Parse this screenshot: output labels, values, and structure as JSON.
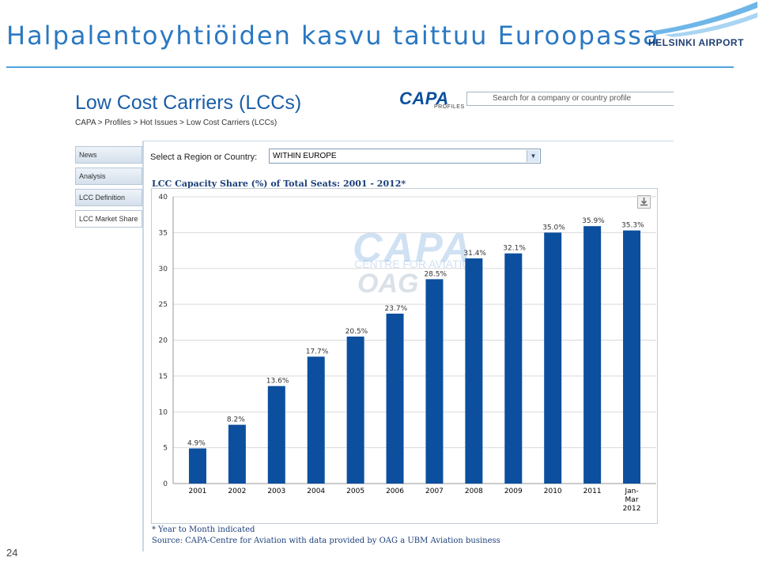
{
  "slide": {
    "title": "Halpalentoyhtiöiden kasvu taittuu Euroopassa",
    "page_number": "24"
  },
  "logo": {
    "text": "HELSINKI AIRPORT",
    "icon": "airplane-wing-icon"
  },
  "capa_page": {
    "heading": "Low Cost Carriers (LCCs)",
    "breadcrumb": "CAPA > Profiles > Hot Issues > Low Cost Carriers (LCCs)",
    "brand": "CAPA",
    "brand_sub": "PROFILES",
    "search_placeholder": "Search for a company or country profile"
  },
  "sidebar": {
    "items": [
      {
        "label": "News"
      },
      {
        "label": "Analysis"
      },
      {
        "label": "LCC Definition"
      },
      {
        "label": "LCC Market Share"
      }
    ]
  },
  "filter": {
    "label": "Select a Region or Country:",
    "selected": "WITHIN EUROPE"
  },
  "watermark": {
    "brand": "CAPA",
    "sub": "CENTRE FOR AVIATION",
    "partner": "OAG"
  },
  "chart_data": {
    "type": "bar",
    "title": "LCC Capacity Share (%) of Total Seats: 2001 - 2012*",
    "categories": [
      "2001",
      "2002",
      "2003",
      "2004",
      "2005",
      "2006",
      "2007",
      "2008",
      "2009",
      "2010",
      "2011",
      "Jan-\nMar\n2012"
    ],
    "values": [
      4.9,
      8.2,
      13.6,
      17.7,
      20.5,
      23.7,
      28.5,
      31.4,
      32.1,
      35.0,
      35.9,
      35.3
    ],
    "value_labels": [
      "4.9%",
      "8.2%",
      "13.6%",
      "17.7%",
      "20.5%",
      "23.7%",
      "28.5%",
      "31.4%",
      "32.1%",
      "35.0%",
      "35.9%",
      "35.3%"
    ],
    "ylim": [
      0,
      40
    ],
    "yticks": [
      0,
      5,
      10,
      15,
      20,
      25,
      30,
      35,
      40
    ],
    "xlabel": "",
    "ylabel": "",
    "grid": true,
    "bar_color": "#0b4f9e"
  },
  "footnotes": {
    "note": "* Year to Month indicated",
    "source": "Source: CAPA-Centre for Aviation with data provided by OAG a UBM Aviation business"
  }
}
